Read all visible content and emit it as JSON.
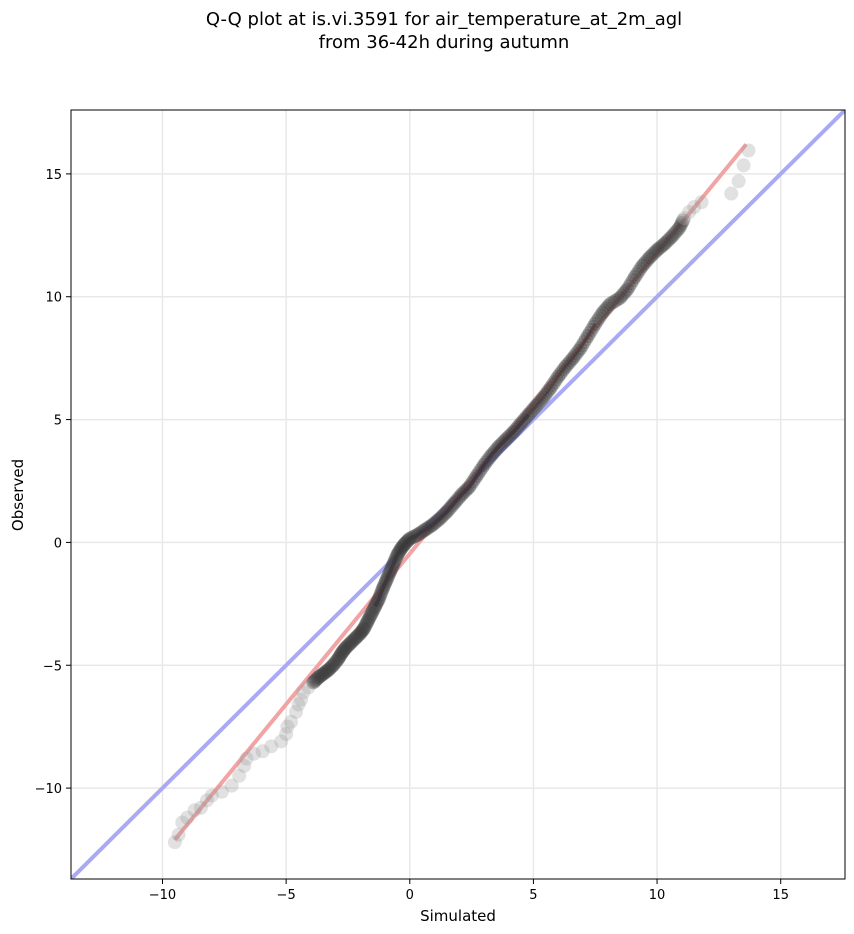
{
  "chart_data": {
    "type": "scatter",
    "title_line1": "Q-Q plot at is.vi.3591 for air_temperature_at_2m_agl",
    "title_line2": "from 36-42h during autumn",
    "xlabel": "Simulated",
    "ylabel": "Observed",
    "xlim": [
      -13.7,
      17.6
    ],
    "ylim": [
      -13.7,
      17.6
    ],
    "x_ticks": [
      -10,
      -5,
      0,
      5,
      10,
      15
    ],
    "y_ticks": [
      -10,
      -5,
      0,
      5,
      10,
      15
    ],
    "x_tick_labels": [
      "−10",
      "−5",
      "0",
      "5",
      "10",
      "15"
    ],
    "y_tick_labels": [
      "−10",
      "−5",
      "0",
      "5",
      "10",
      "15"
    ],
    "grid": true,
    "identity_line": {
      "color": "#aaaaf4",
      "label": ""
    },
    "fit_line": {
      "color": "#f2a3a3",
      "from": [
        -9.5,
        -12.1
      ],
      "to": [
        13.6,
        16.2
      ]
    },
    "quantile_points": [
      [
        -9.5,
        -12.2
      ],
      [
        -9.35,
        -11.9
      ],
      [
        -9.2,
        -11.4
      ],
      [
        -9.0,
        -11.2
      ],
      [
        -8.7,
        -10.9
      ],
      [
        -8.45,
        -10.8
      ],
      [
        -8.2,
        -10.5
      ],
      [
        -8.0,
        -10.3
      ],
      [
        -7.6,
        -10.15
      ],
      [
        -7.2,
        -9.9
      ],
      [
        -6.9,
        -9.5
      ],
      [
        -6.7,
        -9.1
      ],
      [
        -6.6,
        -8.8
      ],
      [
        -6.3,
        -8.6
      ],
      [
        -5.95,
        -8.5
      ],
      [
        -5.6,
        -8.3
      ],
      [
        -5.2,
        -8.1
      ],
      [
        -5.0,
        -7.8
      ],
      [
        -4.95,
        -7.5
      ],
      [
        -4.8,
        -7.3
      ],
      [
        -4.6,
        -6.9
      ],
      [
        -4.5,
        -6.6
      ],
      [
        -4.4,
        -6.4
      ],
      [
        -4.3,
        -6.1
      ],
      [
        -4.1,
        -5.9
      ],
      [
        -3.9,
        -5.7
      ],
      [
        -3.7,
        -5.5
      ],
      [
        -3.5,
        -5.35
      ],
      [
        -3.3,
        -5.2
      ],
      [
        -3.1,
        -5.0
      ],
      [
        -2.9,
        -4.75
      ],
      [
        -2.75,
        -4.5
      ],
      [
        -2.6,
        -4.3
      ],
      [
        -2.4,
        -4.1
      ],
      [
        -2.2,
        -3.9
      ],
      [
        -2.0,
        -3.7
      ],
      [
        -1.85,
        -3.5
      ],
      [
        -1.7,
        -3.2
      ],
      [
        -1.55,
        -2.9
      ],
      [
        -1.4,
        -2.6
      ],
      [
        -1.25,
        -2.3
      ],
      [
        -1.1,
        -1.9
      ],
      [
        -0.95,
        -1.55
      ],
      [
        -0.8,
        -1.2
      ],
      [
        -0.65,
        -0.85
      ],
      [
        -0.5,
        -0.5
      ],
      [
        -0.35,
        -0.25
      ],
      [
        -0.2,
        -0.05
      ],
      [
        0.0,
        0.15
      ],
      [
        0.3,
        0.3
      ],
      [
        0.6,
        0.5
      ],
      [
        0.9,
        0.7
      ],
      [
        1.2,
        0.95
      ],
      [
        1.5,
        1.25
      ],
      [
        1.8,
        1.6
      ],
      [
        2.1,
        1.95
      ],
      [
        2.4,
        2.25
      ],
      [
        2.7,
        2.7
      ],
      [
        3.0,
        3.15
      ],
      [
        3.3,
        3.55
      ],
      [
        3.6,
        3.9
      ],
      [
        3.9,
        4.2
      ],
      [
        4.2,
        4.5
      ],
      [
        4.5,
        4.85
      ],
      [
        4.8,
        5.2
      ],
      [
        5.1,
        5.55
      ],
      [
        5.4,
        5.9
      ],
      [
        5.7,
        6.3
      ],
      [
        6.0,
        6.75
      ],
      [
        6.3,
        7.15
      ],
      [
        6.6,
        7.5
      ],
      [
        6.9,
        7.9
      ],
      [
        7.2,
        8.4
      ],
      [
        7.5,
        8.9
      ],
      [
        7.8,
        9.35
      ],
      [
        8.1,
        9.7
      ],
      [
        8.5,
        9.95
      ],
      [
        8.8,
        10.3
      ],
      [
        9.1,
        10.8
      ],
      [
        9.4,
        11.25
      ],
      [
        9.7,
        11.6
      ],
      [
        10.0,
        11.9
      ],
      [
        10.3,
        12.15
      ],
      [
        10.6,
        12.45
      ],
      [
        10.9,
        12.8
      ],
      [
        11.1,
        13.2
      ],
      [
        11.3,
        13.45
      ],
      [
        11.5,
        13.65
      ],
      [
        11.8,
        13.85
      ],
      [
        13.0,
        14.2
      ],
      [
        13.3,
        14.7
      ],
      [
        13.5,
        15.35
      ],
      [
        13.7,
        15.95
      ]
    ]
  }
}
